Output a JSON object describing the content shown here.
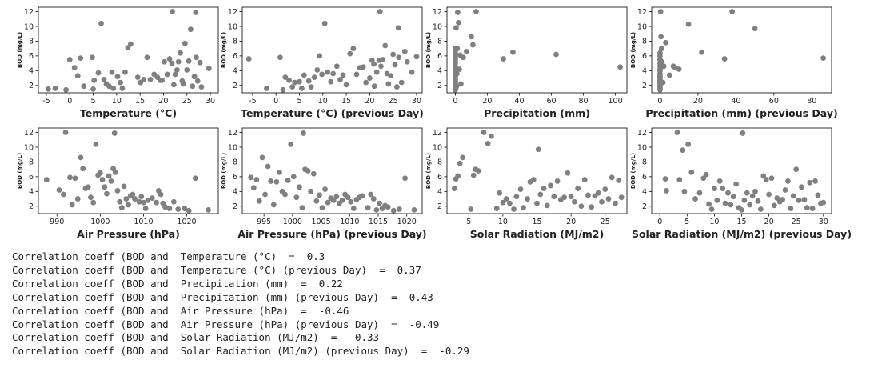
{
  "style": {
    "point_color": "#808080",
    "axis_color": "#000000",
    "text_color": "#222222"
  },
  "chart_data": [
    {
      "type": "scatter",
      "xlabel": "Temperature (°C)",
      "ylabel": "BOD (mg/L)",
      "xlim": [
        -6.7,
        31.7
      ],
      "ylim": [
        1.0,
        12.6
      ],
      "xticks": [
        -5,
        0,
        5,
        10,
        15,
        20,
        25,
        30
      ],
      "yticks": [
        2,
        4,
        6,
        8,
        10,
        12
      ],
      "x": [
        -4.6,
        -3.1,
        -0.8,
        0,
        1,
        1.7,
        2.3,
        3,
        4.8,
        5,
        5.2,
        6.1,
        6.7,
        7.3,
        7.8,
        8.4,
        9,
        9.3,
        10.2,
        10.8,
        11.2,
        11.8,
        12.4,
        13,
        14.5,
        15.1,
        15.8,
        16.5,
        17.2,
        18,
        18.7,
        19.3,
        19.7,
        20.2,
        20.8,
        21.3,
        21.8,
        22.2,
        22.5,
        22.9,
        23.2,
        23.6,
        24,
        24.2,
        24.6,
        25,
        25.4,
        25.8,
        26.2,
        26.6,
        27,
        27.3,
        27.8,
        28.1,
        29.7,
        21.9,
        26.9
      ],
      "y": [
        1.5,
        1.6,
        1.4,
        5.5,
        4.4,
        3.3,
        5.7,
        1.9,
        5.8,
        1.5,
        2.7,
        3.7,
        10.4,
        2.8,
        2.2,
        1.9,
        3.8,
        1.6,
        3.2,
        2.4,
        1.6,
        3.8,
        7.1,
        7.6,
        3.1,
        2.4,
        2.8,
        5.8,
        2.8,
        3.5,
        3.1,
        2.7,
        2.7,
        5.2,
        3.5,
        5.6,
        5,
        2.1,
        3.5,
        4.1,
        5.2,
        6.4,
        2.6,
        2.2,
        7.7,
        4.1,
        5.3,
        9.6,
        1.9,
        3.2,
        5.8,
        2.6,
        5.1,
        1.8,
        4.3,
        12,
        11.9
      ]
    },
    {
      "type": "scatter",
      "xlabel": "Temperature (°C) (previous Day)",
      "ylabel": "BOD (mg/L)",
      "xlim": [
        -7.2,
        31.2
      ],
      "ylim": [
        1.0,
        12.6
      ],
      "xticks": [
        -5,
        0,
        5,
        10,
        15,
        20,
        25,
        30
      ],
      "yticks": [
        2,
        4,
        6,
        8,
        10,
        12
      ],
      "x": [
        -5.8,
        -2,
        0.9,
        1.5,
        2,
        2.8,
        3.5,
        4,
        5,
        5.5,
        6,
        7,
        7.5,
        8.2,
        8.8,
        9.3,
        9.8,
        10.4,
        11,
        11.7,
        12.2,
        13,
        13.7,
        14.3,
        15,
        15.8,
        16.5,
        17.2,
        17.9,
        18.6,
        19.2,
        20,
        20.5,
        21,
        21.5,
        22,
        22.4,
        22.8,
        23.3,
        23.7,
        24,
        24.5,
        25,
        25.4,
        25.8,
        26.2,
        26.8,
        27.5,
        28,
        29,
        30,
        20.9,
        22.2,
        26.1
      ],
      "y": [
        5.6,
        1.6,
        5.8,
        1.4,
        3.1,
        2.7,
        1.8,
        2.4,
        2.5,
        1.6,
        3.4,
        2.6,
        1.8,
        3.1,
        4.1,
        6,
        3.5,
        10.4,
        3.8,
        2.5,
        3.6,
        4.6,
        2.8,
        3.4,
        2.1,
        6.3,
        7,
        3.5,
        4.4,
        4.5,
        2.4,
        3,
        5.4,
        1.9,
        3.8,
        5.4,
        4.6,
        5.5,
        7.4,
        3.6,
        2.2,
        3.3,
        6.2,
        4.8,
        1.8,
        5.8,
        2.4,
        6.6,
        5.2,
        3.8,
        5.9,
        4.9,
        12,
        9.8
      ]
    },
    {
      "type": "scatter",
      "xlabel": "Precipitation (mm)",
      "ylabel": "BOD (mg/L)",
      "xlim": [
        -5.2,
        107.2
      ],
      "ylim": [
        1.0,
        12.6
      ],
      "xticks": [
        0,
        20,
        40,
        60,
        80,
        100
      ],
      "yticks": [
        2,
        4,
        6,
        8,
        10,
        12
      ],
      "x": [
        0,
        0,
        0,
        0,
        0,
        0,
        0,
        0,
        0,
        0,
        0,
        0,
        0,
        0,
        0,
        0,
        0,
        0,
        0,
        0,
        0,
        0,
        0.3,
        0.5,
        0.8,
        1,
        1.2,
        1.5,
        2,
        2.5,
        3,
        3.5,
        5,
        7,
        10,
        11,
        13,
        30,
        36,
        63,
        103
      ],
      "y": [
        1.4,
        1.6,
        1.8,
        2,
        2.2,
        2.4,
        2.6,
        2.8,
        3,
        3.2,
        3.4,
        3.6,
        4,
        4.2,
        4.6,
        5,
        5.4,
        5.6,
        6,
        6.3,
        6.6,
        7,
        1.6,
        9.8,
        1.9,
        3.6,
        7,
        11.9,
        10.5,
        4.2,
        6.1,
        2.2,
        5.8,
        6.6,
        8.6,
        7.5,
        12,
        5.6,
        6.5,
        6.2,
        4.5
      ]
    },
    {
      "type": "scatter",
      "xlabel": "Precipitation (mm) (previous Day)",
      "ylabel": "BOD (mg/L)",
      "xlim": [
        -4.4,
        90.4
      ],
      "ylim": [
        1.0,
        12.6
      ],
      "xticks": [
        0,
        20,
        40,
        60,
        80
      ],
      "yticks": [
        2,
        4,
        6,
        8,
        10,
        12
      ],
      "x": [
        0,
        0,
        0,
        0,
        0,
        0,
        0,
        0,
        0,
        0,
        0,
        0,
        0,
        0,
        0,
        0,
        0,
        0,
        0,
        0.3,
        0.5,
        0.8,
        1,
        1.5,
        2,
        3,
        5,
        7,
        8,
        10,
        15,
        22,
        34,
        38,
        50,
        86
      ],
      "y": [
        1.4,
        1.6,
        1.8,
        2,
        2.2,
        2.4,
        2.6,
        2.8,
        3,
        3.2,
        3.4,
        3.6,
        4,
        4.2,
        4.6,
        5,
        5.5,
        6,
        6.4,
        12,
        8.6,
        7,
        5.2,
        2.4,
        4.6,
        7.8,
        3.4,
        4.6,
        4.4,
        4.2,
        10.3,
        6.5,
        5.6,
        12,
        9.7,
        5.7
      ]
    },
    {
      "type": "scatter",
      "xlabel": "Air Pressure (hPa)",
      "ylabel": "BOD (mg/L)",
      "xlim": [
        985.7,
        1027.3
      ],
      "ylim": [
        1.0,
        12.6
      ],
      "xticks": [
        990,
        1000,
        1010,
        1020
      ],
      "yticks": [
        2,
        4,
        6,
        8,
        10,
        12
      ],
      "x": [
        987.6,
        990.5,
        991.5,
        992,
        993,
        993.5,
        994.2,
        994.8,
        995.5,
        996,
        996.6,
        997.2,
        997.8,
        998.4,
        999,
        999.5,
        1000,
        1000.5,
        1001,
        1001.5,
        1002,
        1002.5,
        1003,
        1003.5,
        1004,
        1004.5,
        1005,
        1005.5,
        1006,
        1006.5,
        1007,
        1007.5,
        1008,
        1009,
        1009.5,
        1010,
        1010.5,
        1011,
        1012,
        1013,
        1013.5,
        1014,
        1014.5,
        1015,
        1016,
        1017,
        1018,
        1019.5,
        1020.5,
        1022,
        1025,
        1003.3
      ],
      "y": [
        5.6,
        4.2,
        3.6,
        12,
        5.9,
        2.2,
        5.8,
        3,
        8.6,
        7.1,
        4.4,
        4.6,
        3.2,
        2.5,
        10.4,
        6.2,
        6.5,
        5.6,
        4.6,
        3.7,
        6.1,
        5.4,
        7.1,
        6.6,
        4.1,
        2.6,
        1.8,
        4.7,
        3,
        2.2,
        3.4,
        3.6,
        3,
        2.6,
        3.3,
        2.5,
        1.7,
        2.8,
        3.1,
        2.5,
        4.1,
        3.6,
        2.4,
        1.9,
        1.7,
        2.6,
        1.6,
        1.7,
        1.4,
        5.8,
        1.5,
        11.9
      ]
    },
    {
      "type": "scatter",
      "xlabel": "Air Pressure (hPa) (previous Day)",
      "ylabel": "BOD (mg/L)",
      "xlim": [
        991.2,
        1022.7
      ],
      "ylim": [
        1.0,
        12.6
      ],
      "xticks": [
        995,
        1000,
        1005,
        1010,
        1015,
        1020
      ],
      "yticks": [
        2,
        4,
        6,
        8,
        10,
        12
      ],
      "x": [
        992.7,
        993.2,
        993.7,
        994.2,
        994.7,
        995.2,
        995.7,
        996.2,
        996.7,
        997.2,
        997.7,
        998.2,
        998.7,
        999.2,
        999.7,
        1000.2,
        1000.7,
        1001.2,
        1001.7,
        1002.2,
        1002.7,
        1003.2,
        1003.7,
        1004.2,
        1004.7,
        1005.2,
        1005.7,
        1006.2,
        1006.7,
        1007.2,
        1007.7,
        1008.2,
        1008.7,
        1009.2,
        1009.7,
        1010.2,
        1010.7,
        1011.2,
        1011.7,
        1012.2,
        1013.2,
        1013.7,
        1014.2,
        1014.7,
        1015.2,
        1015.7,
        1016.2,
        1016.7,
        1017.7,
        1018.7,
        1019.7,
        1021.3,
        1001.9
      ],
      "y": [
        5.9,
        4.5,
        5.6,
        2.7,
        8.6,
        3.6,
        7.4,
        5.4,
        2.2,
        5.3,
        6.6,
        4,
        3.6,
        5.5,
        10.4,
        6,
        3.2,
        4.6,
        1.8,
        7,
        6.8,
        4,
        6.4,
        2.7,
        3.5,
        1.8,
        4.3,
        2.5,
        3.1,
        2.8,
        3.3,
        2.4,
        2.8,
        3.6,
        3.2,
        2.6,
        1.7,
        2.9,
        3.2,
        3.4,
        1.8,
        3.6,
        3,
        1.5,
        2.4,
        1.7,
        2.1,
        1.9,
        1.4,
        1.6,
        5.8,
        1.5,
        11.9
      ]
    },
    {
      "type": "scatter",
      "xlabel": "Solar Radiation (MJ/m2)",
      "ylabel": "BOD (mg/L)",
      "xlim": [
        1.8,
        28.2
      ],
      "ylim": [
        1.0,
        12.6
      ],
      "xticks": [
        5,
        10,
        15,
        20,
        25
      ],
      "yticks": [
        2,
        4,
        6,
        8,
        10,
        12
      ],
      "x": [
        2.9,
        3.1,
        3.4,
        3.7,
        4.1,
        5.3,
        5.7,
        6,
        6.4,
        7.2,
        7.8,
        8.3,
        9.1,
        9.5,
        10,
        10.5,
        11,
        11.6,
        12,
        12.6,
        13,
        13.6,
        14,
        14.5,
        15,
        15.5,
        16,
        16.5,
        17,
        17.5,
        18,
        18.5,
        19,
        19.5,
        20,
        20.5,
        21,
        21.5,
        22,
        22.5,
        23,
        23.5,
        24,
        24.5,
        25,
        25.5,
        26,
        26.5,
        27,
        27.4,
        15.2
      ],
      "y": [
        4.4,
        5.7,
        6.1,
        7.8,
        8.6,
        1.6,
        6.2,
        7,
        6.8,
        12,
        10.5,
        11.5,
        1.7,
        3.8,
        2.5,
        3,
        2.4,
        1.6,
        3.3,
        4.3,
        1.8,
        3,
        5.3,
        5.6,
        2.4,
        3.6,
        4.4,
        2.1,
        4.8,
        3.3,
        5.4,
        2.9,
        3.2,
        6.5,
        3.3,
        2.6,
        4.4,
        2,
        5.6,
        3.5,
        1.9,
        3.4,
        3.8,
        2.6,
        4.3,
        3,
        5.9,
        2.4,
        5.5,
        3.2,
        9.7
      ]
    },
    {
      "type": "scatter",
      "xlabel": "Solar Radiation (MJ/m2) (previous Day)",
      "ylabel": "BOD (mg/L)",
      "xlim": [
        -1.5,
        31.5
      ],
      "ylim": [
        1.0,
        12.6
      ],
      "xticks": [
        0,
        5,
        10,
        15,
        20,
        25,
        30
      ],
      "yticks": [
        2,
        4,
        6,
        8,
        10,
        12
      ],
      "x": [
        1,
        1.2,
        3.2,
        3.6,
        4.2,
        4.5,
        5.2,
        5.8,
        6.5,
        7.3,
        8,
        8.5,
        9,
        9.5,
        10,
        10.5,
        11,
        11.5,
        12,
        12.5,
        13,
        13.5,
        14,
        14.5,
        15,
        15.5,
        16,
        16.5,
        17,
        17.5,
        18,
        18.5,
        19,
        19.5,
        20,
        20.5,
        21,
        21.5,
        22,
        22.5,
        23,
        23.5,
        24,
        24.5,
        25,
        25.5,
        26,
        26.5,
        27,
        27.5,
        28,
        28.5,
        29,
        29.5,
        30,
        15.2
      ],
      "y": [
        5.7,
        4.1,
        12,
        5.6,
        9.6,
        4,
        10.4,
        6.6,
        3,
        3.8,
        5.8,
        6.3,
        2.3,
        1.6,
        4.4,
        2.8,
        5.4,
        4.4,
        2.4,
        3.8,
        2.2,
        3.3,
        5,
        1.8,
        1.5,
        2.8,
        3.8,
        2.2,
        3.4,
        4,
        2.7,
        1.6,
        6.1,
        5.6,
        3.6,
        5.8,
        2.1,
        3.1,
        2.6,
        2.9,
        4.2,
        5.4,
        1.7,
        3.4,
        7,
        2.8,
        4.6,
        2.9,
        1.8,
        5.2,
        1.7,
        5.4,
        3.5,
        2.4,
        2.5,
        11.9
      ]
    }
  ],
  "output": {
    "lines": [
      "Correlation coeff (BOD and  Temperature (°C)  =  0.3",
      "Correlation coeff (BOD and  Temperature (°C) (previous Day)  =  0.37",
      "Correlation coeff (BOD and  Precipitation (mm)  =  0.22",
      "Correlation coeff (BOD and  Precipitation (mm) (previous Day)  =  0.43",
      "Correlation coeff (BOD and  Air Pressure (hPa)  =  -0.46",
      "Correlation coeff (BOD and  Air Pressure (hPa) (previous Day)  =  -0.49",
      "Correlation coeff (BOD and  Solar Radiation (MJ/m2)  =  -0.33",
      "Correlation coeff (BOD and  Solar Radiation (MJ/m2) (previous Day)  =  -0.29"
    ]
  }
}
